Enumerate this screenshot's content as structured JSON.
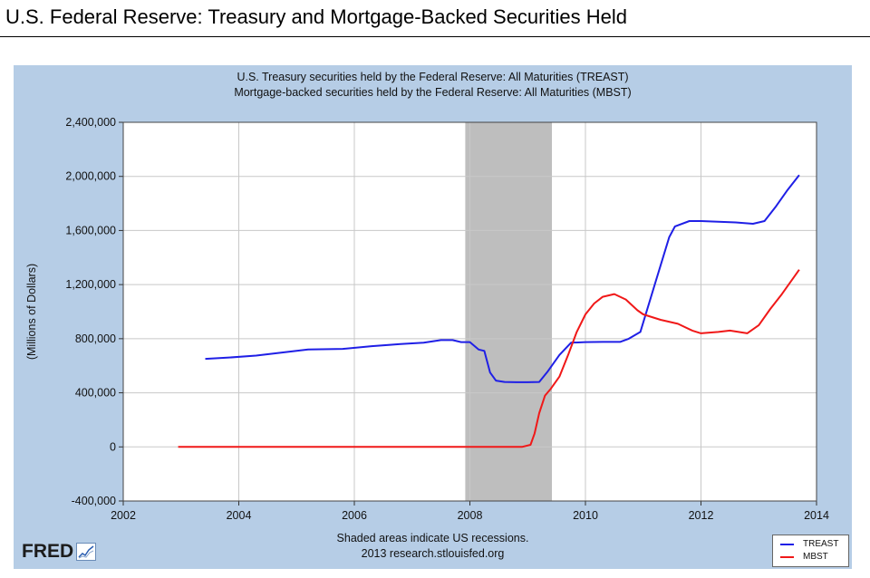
{
  "page": {
    "title": "U.S. Federal Reserve:  Treasury and Mortgage-Backed Securities Held"
  },
  "footer": {
    "note_line1": "Shaded areas indicate US recessions.",
    "note_line2": "2013 research.stlouisfed.org",
    "logo_text": "FRED"
  },
  "colors": {
    "panel_background": "#b6cde6",
    "plot_background": "#ffffff",
    "recession_shade": "#bebebe",
    "treast": "#1f1fe6",
    "mbst": "#f01818"
  },
  "chart_data": {
    "type": "line",
    "title": [
      "U.S. Treasury securities held by the Federal Reserve: All Maturities (TREAST)",
      "Mortgage-backed securities held by the Federal Reserve: All Maturities (MBST)"
    ],
    "xlabel": "",
    "ylabel": "(Millions of Dollars)",
    "xlim": [
      2002,
      2014
    ],
    "ylim": [
      -400000,
      2400000
    ],
    "xticks": [
      2002,
      2004,
      2006,
      2008,
      2010,
      2012,
      2014
    ],
    "yticks": [
      -400000,
      0,
      400000,
      800000,
      1200000,
      1600000,
      2000000,
      2400000
    ],
    "ytick_labels": [
      "-400,000",
      "0",
      "400,000",
      "800,000",
      "1,200,000",
      "1,600,000",
      "2,000,000",
      "2,400,000"
    ],
    "grid": true,
    "legend_position": "bottom-right",
    "recessions": [
      [
        2007.92,
        2009.42
      ]
    ],
    "series": [
      {
        "name": "TREAST",
        "x": [
          2003.42,
          2003.8,
          2004.3,
          2004.8,
          2005.2,
          2005.8,
          2006.3,
          2006.8,
          2007.2,
          2007.5,
          2007.7,
          2007.85,
          2008.0,
          2008.15,
          2008.25,
          2008.35,
          2008.45,
          2008.6,
          2008.8,
          2009.0,
          2009.2,
          2009.35,
          2009.55,
          2009.75,
          2010.0,
          2010.3,
          2010.6,
          2010.75,
          2010.95,
          2011.2,
          2011.45,
          2011.55,
          2011.8,
          2012.0,
          2012.3,
          2012.6,
          2012.9,
          2013.1,
          2013.3,
          2013.5,
          2013.7
        ],
        "y": [
          651000,
          660000,
          675000,
          700000,
          720000,
          725000,
          745000,
          760000,
          770000,
          790000,
          790000,
          775000,
          775000,
          720000,
          710000,
          550000,
          490000,
          480000,
          478000,
          478000,
          480000,
          560000,
          680000,
          770000,
          775000,
          776000,
          776000,
          800000,
          850000,
          1200000,
          1550000,
          1630000,
          1670000,
          1670000,
          1665000,
          1660000,
          1650000,
          1670000,
          1780000,
          1900000,
          2010000
        ]
      },
      {
        "name": "MBST",
        "x": [
          2002.95,
          2004,
          2005,
          2006,
          2007,
          2008,
          2008.9,
          2009.05,
          2009.12,
          2009.2,
          2009.3,
          2009.4,
          2009.55,
          2009.7,
          2009.85,
          2010.0,
          2010.15,
          2010.3,
          2010.5,
          2010.7,
          2010.9,
          2011.0,
          2011.3,
          2011.6,
          2011.85,
          2012.0,
          2012.3,
          2012.5,
          2012.8,
          2013.0,
          2013.2,
          2013.4,
          2013.55,
          2013.7
        ],
        "y": [
          0,
          0,
          0,
          0,
          0,
          0,
          0,
          15000,
          100000,
          250000,
          380000,
          430000,
          520000,
          680000,
          850000,
          980000,
          1060000,
          1110000,
          1130000,
          1090000,
          1010000,
          980000,
          940000,
          910000,
          860000,
          840000,
          850000,
          860000,
          840000,
          900000,
          1020000,
          1130000,
          1220000,
          1310000
        ]
      }
    ]
  }
}
